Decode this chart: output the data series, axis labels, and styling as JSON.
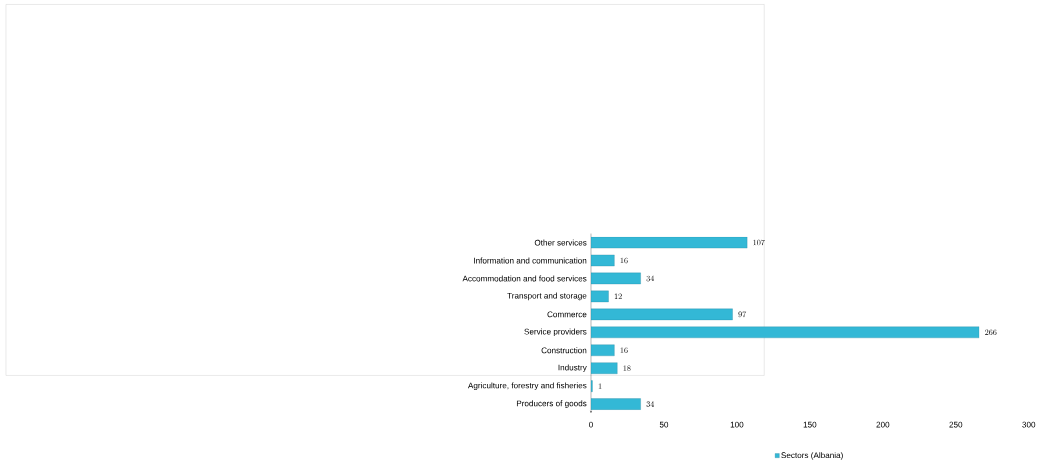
{
  "chart_data": {
    "type": "bar",
    "orientation": "horizontal",
    "categories": [
      "Other services",
      "Information and communication",
      "Accommodation and food services",
      "Transport and storage",
      "Commerce",
      "Service providers",
      "Construction",
      "Industry",
      "Agriculture, forestry and fisheries",
      "Producers of goods"
    ],
    "series": [
      {
        "name": "Sectors (Albania)",
        "color": "#33b8d6",
        "values": [
          107,
          16,
          34,
          12,
          97,
          266,
          16,
          18,
          1,
          34
        ]
      }
    ],
    "xlim": [
      0,
      300
    ],
    "xticks": [
      0,
      50,
      100,
      150,
      200,
      250,
      300
    ],
    "data_labels": true,
    "legend": "bottom",
    "grid": false
  }
}
